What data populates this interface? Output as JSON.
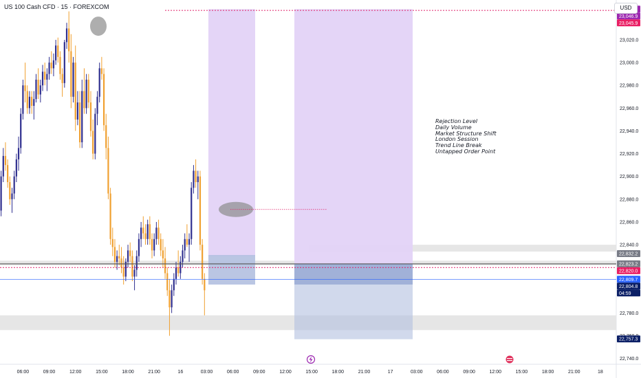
{
  "header": {
    "title": "US 100 Cash CFD · 15 · FOREXCOM",
    "currency_button": "USD"
  },
  "annotations": {
    "lines": [
      "Rejection Level",
      "Daily Volume",
      "Market Structure Shift",
      "London Session",
      "Trend Line Break",
      "Untapped Order Point"
    ]
  },
  "colors": {
    "up": "#2f2f8f",
    "down": "#f0a030",
    "session_box": "#e3d3f7",
    "demand_box": "#b3c0e0",
    "red_dotted": "#e0206a",
    "grey_zone": "#e6e6e6",
    "ellipse": "#8c8c8c"
  },
  "chart_data": {
    "type": "candlestick",
    "y_axis": {
      "min": 22735,
      "max": 23055,
      "ticks": [
        22740,
        22760,
        22780,
        22800,
        22820,
        22840,
        22860,
        22880,
        22900,
        22920,
        22940,
        22960,
        22980,
        23000,
        23020,
        23040
      ],
      "tick_labels": [
        "22,740.0",
        "22,760.0",
        "22,780.0",
        "22,800.0",
        "22,820.0",
        "22,840.0",
        "22,860.0",
        "22,880.0",
        "22,900.0",
        "22,920.0",
        "22,940.0",
        "22,960.0",
        "22,980.0",
        "23,000.0",
        "23,020.0",
        "23,040.0"
      ]
    },
    "x_axis": {
      "time_labels": [
        "06:00",
        "09:00",
        "12:00",
        "15:00",
        "18:00",
        "21:00",
        "16",
        "03:00",
        "06:00",
        "09:00",
        "12:00",
        "15:00",
        "18:00",
        "21:00",
        "17",
        "03:00",
        "06:00",
        "09:00",
        "12:00",
        "15:00",
        "18:00",
        "21:00",
        "18"
      ],
      "label_bar_index": [
        10,
        22,
        34,
        46,
        58,
        70,
        82,
        94,
        106,
        118,
        130,
        142,
        154,
        166,
        178,
        190,
        202,
        214,
        226,
        238,
        250,
        262,
        274
      ],
      "bar_count": 145
    },
    "price_badges": [
      {
        "label": "23,047.0",
        "value": 23047,
        "color": "#9c27b0"
      },
      {
        "label": "23,046.9",
        "value": 23046.9,
        "color": "#9c27b0"
      },
      {
        "label": "23,045.9",
        "value": 23045.9,
        "color": "#e91e63"
      },
      {
        "label": "22,832.2",
        "value": 22832.2,
        "color": "#787b86"
      },
      {
        "label": "22,823.2",
        "value": 22823.2,
        "color": "#787b86"
      },
      {
        "label": "22,820.0",
        "value": 22820,
        "color": "#e91e63"
      },
      {
        "label": "22,809.7",
        "value": 22809.7,
        "color": "#2962ff"
      },
      {
        "label": "22,804.8",
        "value": 22804.8,
        "color": "#0b1f66"
      },
      {
        "label": "04:59",
        "value": 22799,
        "color": "#0b1f66"
      },
      {
        "label": "22,757.3",
        "value": 22757.3,
        "color": "#0b1f66"
      }
    ],
    "levels": {
      "top_red_dotted": 23045.9,
      "mid_dotted": 22871,
      "grey_line": 22823.2,
      "red_dotted": 22820,
      "blue_line": 22809.7
    },
    "candles": [
      [
        22870,
        22905,
        22865,
        22900
      ],
      [
        22900,
        22925,
        22895,
        22918
      ],
      [
        22918,
        22930,
        22905,
        22910
      ],
      [
        22910,
        22915,
        22890,
        22895
      ],
      [
        22895,
        22900,
        22875,
        22880
      ],
      [
        22880,
        22890,
        22868,
        22885
      ],
      [
        22885,
        22905,
        22880,
        22900
      ],
      [
        22900,
        22920,
        22895,
        22915
      ],
      [
        22915,
        22935,
        22905,
        22925
      ],
      [
        22925,
        22960,
        22920,
        22955
      ],
      [
        22955,
        22985,
        22950,
        22980
      ],
      [
        22980,
        23000,
        22965,
        22975
      ],
      [
        22975,
        22980,
        22955,
        22960
      ],
      [
        22960,
        22975,
        22955,
        22970
      ],
      [
        22970,
        22975,
        22955,
        22962
      ],
      [
        22962,
        22975,
        22950,
        22968
      ],
      [
        22968,
        22990,
        22965,
        22985
      ],
      [
        22985,
        22995,
        22968,
        22972
      ],
      [
        22972,
        22985,
        22965,
        22980
      ],
      [
        22980,
        22998,
        22975,
        22992
      ],
      [
        22992,
        23000,
        22980,
        22985
      ],
      [
        22985,
        22995,
        22975,
        22990
      ],
      [
        22990,
        23005,
        22985,
        23000
      ],
      [
        23000,
        23010,
        22990,
        22995
      ],
      [
        22995,
        23008,
        22988,
        23002
      ],
      [
        23002,
        23020,
        22998,
        23015
      ],
      [
        23015,
        23022,
        23000,
        23005
      ],
      [
        23005,
        23010,
        22985,
        22990
      ],
      [
        22990,
        22995,
        22970,
        22982
      ],
      [
        22982,
        23020,
        22978,
        23018
      ],
      [
        23018,
        23035,
        23012,
        23030
      ],
      [
        23030,
        23045,
        23000,
        23010
      ],
      [
        23010,
        23025,
        22960,
        22970
      ],
      [
        22970,
        23005,
        22965,
        23000
      ],
      [
        23000,
        23015,
        22940,
        22950
      ],
      [
        22950,
        22975,
        22945,
        22965
      ],
      [
        22965,
        22975,
        22925,
        22930
      ],
      [
        22930,
        22985,
        22925,
        22975
      ],
      [
        22975,
        22995,
        22955,
        22960
      ],
      [
        22960,
        22990,
        22955,
        22985
      ],
      [
        22985,
        22990,
        22960,
        22965
      ],
      [
        22965,
        22975,
        22935,
        22940
      ],
      [
        22940,
        22950,
        22915,
        22920
      ],
      [
        22920,
        22960,
        22915,
        22955
      ],
      [
        22955,
        22975,
        22945,
        22970
      ],
      [
        22970,
        23000,
        22965,
        22995
      ],
      [
        22995,
        23005,
        22985,
        22990
      ],
      [
        22990,
        22995,
        22940,
        22945
      ],
      [
        22945,
        22955,
        22915,
        22925
      ],
      [
        22925,
        22935,
        22880,
        22885
      ],
      [
        22885,
        22890,
        22840,
        22845
      ],
      [
        22845,
        22855,
        22830,
        22838
      ],
      [
        22838,
        22845,
        22820,
        22825
      ],
      [
        22825,
        22835,
        22818,
        22830
      ],
      [
        22830,
        22840,
        22822,
        22828
      ],
      [
        22828,
        22838,
        22815,
        22820
      ],
      [
        22820,
        22830,
        22805,
        22812
      ],
      [
        22812,
        22828,
        22808,
        22825
      ],
      [
        22825,
        22840,
        22820,
        22835
      ],
      [
        22835,
        22842,
        22825,
        22830
      ],
      [
        22830,
        22835,
        22808,
        22812
      ],
      [
        22812,
        22822,
        22800,
        22818
      ],
      [
        22818,
        22835,
        22812,
        22830
      ],
      [
        22830,
        22850,
        22825,
        22845
      ],
      [
        22845,
        22860,
        22838,
        22855
      ],
      [
        22855,
        22865,
        22845,
        22850
      ],
      [
        22850,
        22858,
        22840,
        22845
      ],
      [
        22845,
        22862,
        22840,
        22858
      ],
      [
        22858,
        22865,
        22840,
        22845
      ],
      [
        22845,
        22850,
        22828,
        22835
      ],
      [
        22835,
        22850,
        22830,
        22845
      ],
      [
        22845,
        22860,
        22840,
        22855
      ],
      [
        22855,
        22862,
        22840,
        22845
      ],
      [
        22845,
        22850,
        22830,
        22835
      ],
      [
        22835,
        22845,
        22820,
        22828
      ],
      [
        22828,
        22838,
        22810,
        22815
      ],
      [
        22815,
        22820,
        22795,
        22800
      ],
      [
        22800,
        22810,
        22760,
        22785
      ],
      [
        22785,
        22805,
        22780,
        22800
      ],
      [
        22800,
        22815,
        22795,
        22810
      ],
      [
        22810,
        22825,
        22805,
        22820
      ],
      [
        22820,
        22835,
        22812,
        22815
      ],
      [
        22815,
        22830,
        22810,
        22825
      ],
      [
        22825,
        22840,
        22820,
        22835
      ],
      [
        22835,
        22850,
        22828,
        22845
      ],
      [
        22845,
        22858,
        22838,
        22840
      ],
      [
        22840,
        22850,
        22825,
        22845
      ],
      [
        22845,
        22895,
        22840,
        22890
      ],
      [
        22890,
        22910,
        22885,
        22905
      ],
      [
        22905,
        22915,
        22890,
        22895
      ],
      [
        22895,
        22905,
        22880,
        22900
      ],
      [
        22900,
        22905,
        22835,
        22840
      ],
      [
        22840,
        22845,
        22805,
        22810
      ],
      [
        22810,
        22815,
        22778,
        22800
      ]
    ]
  }
}
